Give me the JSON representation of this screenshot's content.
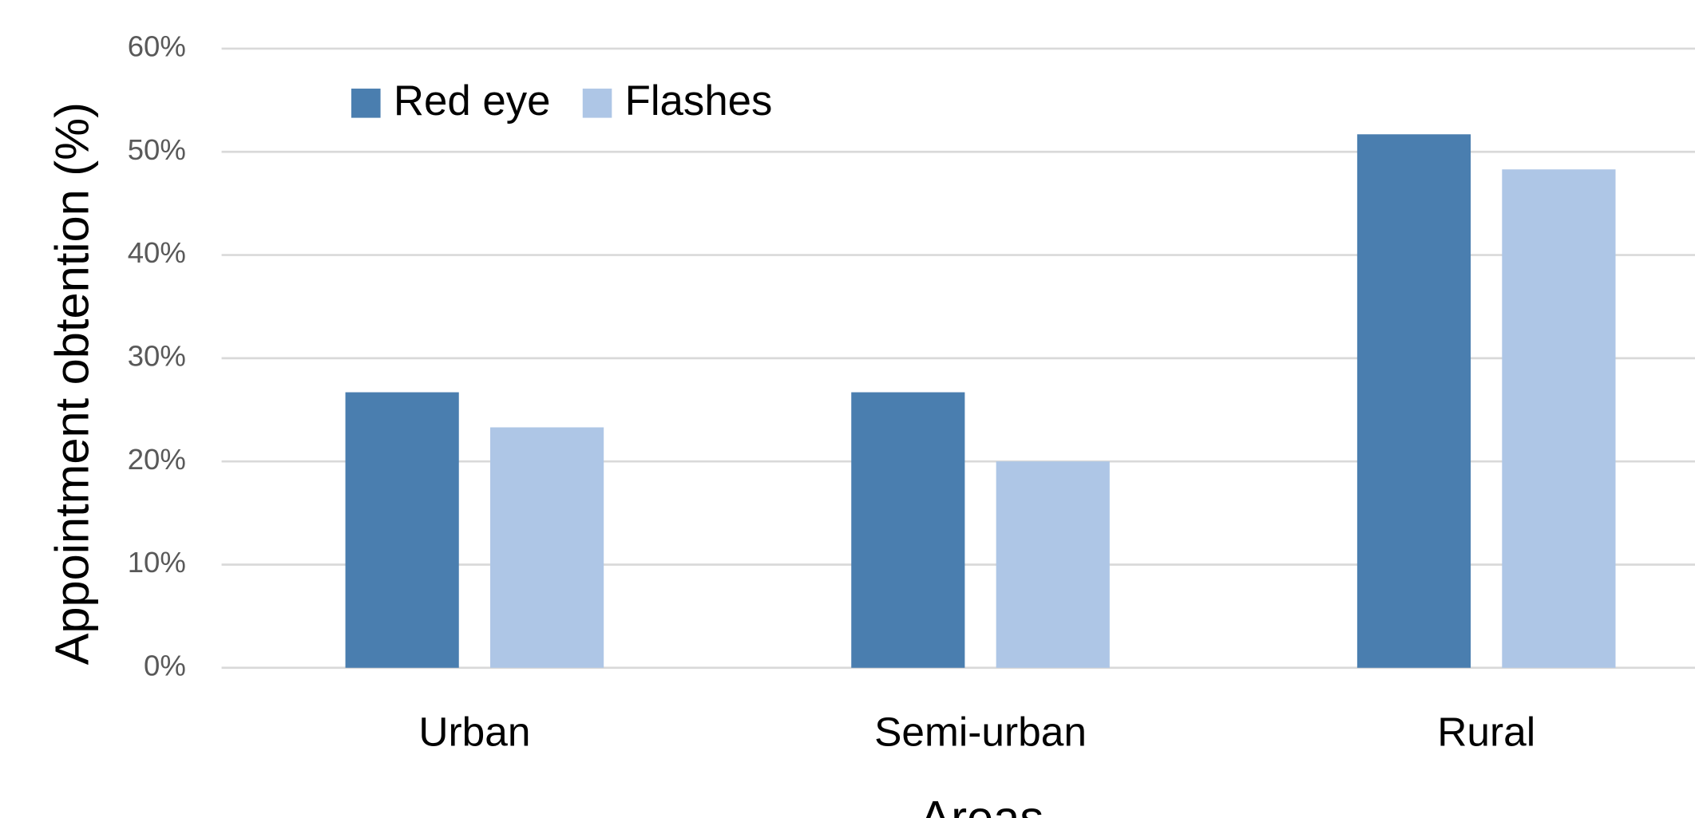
{
  "chart_data": {
    "type": "bar",
    "x_label": "Areas",
    "y_label": "Appointment obtention (%)",
    "categories": [
      "Urban",
      "Semi-urban",
      "Rural"
    ],
    "series": [
      {
        "name": "Red eye",
        "color": "#4a7eaf",
        "values": [
          26.7,
          26.7,
          51.7
        ]
      },
      {
        "name": "Flashes",
        "color": "#aec6e6",
        "values": [
          23.3,
          20,
          48.3
        ]
      }
    ],
    "ylim": [
      0,
      60
    ],
    "yticks": [
      {
        "value": 0,
        "label": "0%"
      },
      {
        "value": 10,
        "label": "10%"
      },
      {
        "value": 20,
        "label": "20%"
      },
      {
        "value": 30,
        "label": "30%"
      },
      {
        "value": 40,
        "label": "40%"
      },
      {
        "value": 50,
        "label": "50%"
      },
      {
        "value": 60,
        "label": "60%"
      }
    ],
    "grid": true,
    "legend": "top-left"
  }
}
